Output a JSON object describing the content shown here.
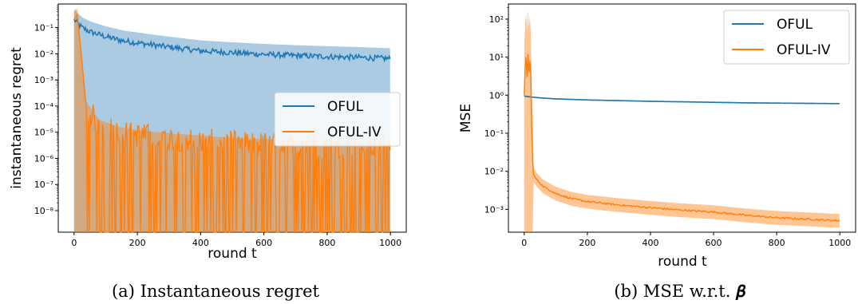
{
  "colors": {
    "oful": "#1f77b4",
    "ofuliv": "#ff7f0e"
  },
  "chart_data": [
    {
      "type": "line",
      "xlabel": "round t",
      "ylabel": "instantaneous regret",
      "caption": "(a) Instantaneous regret",
      "yscale": "log",
      "xlim": [
        -50,
        1050
      ],
      "ylim": [
        1.5e-09,
        0.8
      ],
      "xticks": [
        0,
        200,
        400,
        600,
        800,
        1000
      ],
      "xtick_labels": [
        "0",
        "200",
        "400",
        "600",
        "800",
        "1000"
      ],
      "yticks": [
        1e-08,
        1e-07,
        1e-06,
        1e-05,
        0.0001,
        0.001,
        0.01,
        0.1
      ],
      "ytick_labels": [
        "10⁻⁸",
        "10⁻⁷",
        "10⁻⁶",
        "10⁻⁵",
        "10⁻⁴",
        "10⁻³",
        "10⁻²",
        "10⁻¹"
      ],
      "legend_position": "center-right",
      "series": [
        {
          "name": "OFUL",
          "x": [
            0,
            25,
            50,
            100,
            150,
            200,
            300,
            400,
            500,
            600,
            700,
            800,
            900,
            1000
          ],
          "y": [
            0.2,
            0.1,
            0.07,
            0.045,
            0.032,
            0.026,
            0.018,
            0.013,
            0.011,
            0.0095,
            0.0085,
            0.0078,
            0.0072,
            0.0065
          ]
        },
        {
          "name": "OFUL-IV",
          "x": [
            0,
            10,
            20,
            30,
            40,
            50,
            60,
            80,
            100,
            150,
            200,
            300,
            400,
            500,
            600,
            700,
            800,
            900,
            1000
          ],
          "y": [
            0.2,
            0.3,
            0.02,
            0.001,
            5e-05,
            3e-05,
            2e-05,
            1e-05,
            8e-06,
            5e-06,
            4e-06,
            3e-06,
            2.5e-06,
            2e-06,
            1.8e-06,
            1.6e-06,
            1.5e-06,
            1.4e-06,
            1.3e-06
          ]
        }
      ]
    },
    {
      "type": "line",
      "xlabel": "round t",
      "ylabel": "MSE",
      "caption": "(b) MSE w.r.t. 𝜷",
      "yscale": "log",
      "xlim": [
        -50,
        1050
      ],
      "ylim": [
        0.00025,
        250
      ],
      "xticks": [
        0,
        200,
        400,
        600,
        800,
        1000
      ],
      "xtick_labels": [
        "0",
        "200",
        "400",
        "600",
        "800",
        "1000"
      ],
      "yticks": [
        0.001,
        0.01,
        0.1,
        1,
        10,
        100
      ],
      "ytick_labels": [
        "10⁻³",
        "10⁻²",
        "10⁻¹",
        "10⁰",
        "10¹",
        "10²"
      ],
      "legend_position": "top-right",
      "series": [
        {
          "name": "OFUL",
          "x": [
            0,
            20,
            50,
            100,
            200,
            300,
            400,
            500,
            600,
            700,
            800,
            900,
            1000
          ],
          "y": [
            0.95,
            0.9,
            0.85,
            0.8,
            0.75,
            0.72,
            0.69,
            0.67,
            0.65,
            0.63,
            0.62,
            0.61,
            0.6
          ]
        },
        {
          "name": "OFUL-IV",
          "x": [
            0,
            3,
            6,
            9,
            12,
            15,
            18,
            21,
            25,
            30,
            40,
            60,
            100,
            150,
            200,
            300,
            400,
            500,
            600,
            700,
            800,
            900,
            1000
          ],
          "y": [
            1,
            5,
            10,
            3,
            12,
            4,
            8,
            3,
            0.03,
            0.008,
            0.006,
            0.004,
            0.0026,
            0.0019,
            0.0016,
            0.0013,
            0.0011,
            0.00095,
            0.00085,
            0.0007,
            0.0006,
            0.00055,
            0.0005
          ]
        }
      ]
    }
  ]
}
